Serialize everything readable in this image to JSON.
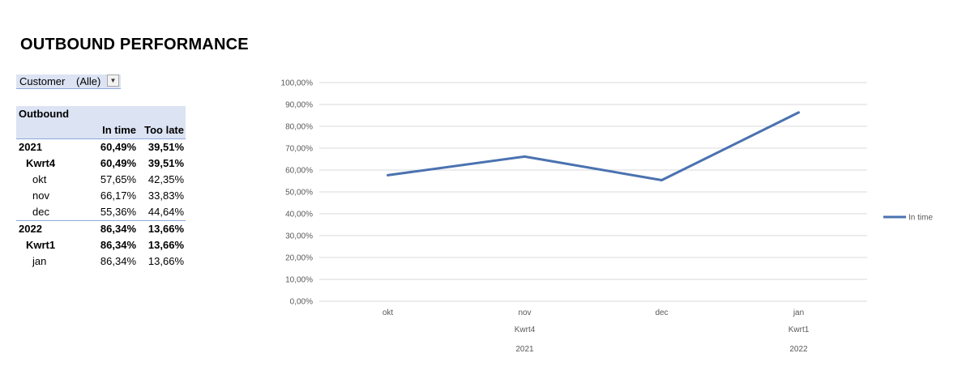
{
  "title": "OUTBOUND PERFORMANCE",
  "filter": {
    "label": "Customer",
    "value": "(Alle)"
  },
  "pivot": {
    "header": "Outbound",
    "col_headers": [
      "In time",
      "Too late"
    ],
    "rows": [
      {
        "level": "year",
        "label": "2021",
        "in_time": "60,49%",
        "too_late": "39,51%"
      },
      {
        "level": "quarter",
        "label": "Kwrt4",
        "in_time": "60,49%",
        "too_late": "39,51%"
      },
      {
        "level": "month",
        "label": "okt",
        "in_time": "57,65%",
        "too_late": "42,35%"
      },
      {
        "level": "month",
        "label": "nov",
        "in_time": "66,17%",
        "too_late": "33,83%"
      },
      {
        "level": "month",
        "label": "dec",
        "in_time": "55,36%",
        "too_late": "44,64%"
      },
      {
        "level": "year",
        "label": "2022",
        "in_time": "86,34%",
        "too_late": "13,66%"
      },
      {
        "level": "quarter",
        "label": "Kwrt1",
        "in_time": "86,34%",
        "too_late": "13,66%"
      },
      {
        "level": "month",
        "label": "jan",
        "in_time": "86,34%",
        "too_late": "13,66%"
      }
    ]
  },
  "chart_data": {
    "type": "line",
    "x": [
      "okt",
      "nov",
      "dec",
      "jan"
    ],
    "x_group_quarter": [
      "Kwrt4",
      "Kwrt1"
    ],
    "x_group_year": [
      "2021",
      "2022"
    ],
    "series": [
      {
        "name": "In time",
        "values": [
          57.65,
          66.17,
          55.36,
          86.34
        ],
        "color": "#4a72b0"
      }
    ],
    "ylim": [
      0,
      100
    ],
    "yticks": [
      "0,00%",
      "10,00%",
      "20,00%",
      "30,00%",
      "40,00%",
      "50,00%",
      "60,00%",
      "70,00%",
      "80,00%",
      "90,00%",
      "100,00%"
    ],
    "grid": true,
    "legend": "right"
  }
}
